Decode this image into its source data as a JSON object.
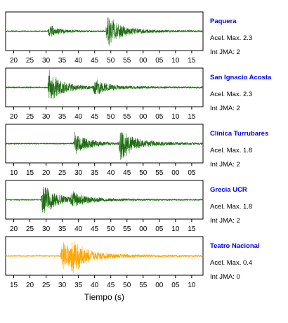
{
  "xlabel": "Tiempo (s)",
  "colors": {
    "trace_green": "#1f6e12",
    "trace_orange": "#ffa500",
    "station_name": "#0000ee",
    "axis": "#000000",
    "text": "#000000"
  },
  "chart_data": [
    {
      "type": "line",
      "station": "Paquera",
      "accel_label": "Acel. Max. 2.3",
      "jma_label": "Int JMA: 2",
      "peak_accel": 2.3,
      "jma_intensity": 2,
      "trace_color": "#1f6e12",
      "tick_labels": [
        "20",
        "25",
        "30",
        "35",
        "40",
        "45",
        "50",
        "55",
        "00",
        "05",
        "10",
        "15"
      ],
      "time_axis_s": {
        "start": 17.5,
        "end": 78.5,
        "first_tick": 20,
        "step": 5
      },
      "signal": {
        "p_arrival_s": 30.5,
        "s_arrival_s": 48.5,
        "noise": 0.03,
        "p_amp": 0.35,
        "s_amp": 1.0
      }
    },
    {
      "type": "line",
      "station": "San Ignacio Acosta",
      "accel_label": "Acel. Max. 2.3",
      "jma_label": "Int JMA: 2",
      "peak_accel": 2.3,
      "jma_intensity": 2,
      "trace_color": "#1f6e12",
      "tick_labels": [
        "20",
        "25",
        "30",
        "35",
        "40",
        "45",
        "50",
        "55",
        "00",
        "05",
        "10",
        "15"
      ],
      "time_axis_s": {
        "start": 17.5,
        "end": 78.5,
        "first_tick": 20,
        "step": 5
      },
      "signal": {
        "p_arrival_s": 30.5,
        "s_arrival_s": 44.5,
        "noise": 0.03,
        "p_amp": 1.0,
        "s_amp": 0.45
      }
    },
    {
      "type": "line",
      "station": "Clinica Turrubares",
      "accel_label": "Acel. Max. 1.8",
      "jma_label": "Int JMA: 2",
      "peak_accel": 1.8,
      "jma_intensity": 2,
      "trace_color": "#1f6e12",
      "tick_labels": [
        "10",
        "15",
        "20",
        "25",
        "30",
        "35",
        "40",
        "45",
        "50",
        "55",
        "00",
        "05"
      ],
      "time_axis_s": {
        "start": 7.5,
        "end": 68.5,
        "first_tick": 10,
        "step": 5
      },
      "signal": {
        "p_arrival_s": 28.5,
        "s_arrival_s": 42.5,
        "noise": 0.03,
        "p_amp": 0.75,
        "s_amp": 1.0
      }
    },
    {
      "type": "line",
      "station": "Grecia UCR",
      "accel_label": "Acel. Max. 1.8",
      "jma_label": "Int JMA: 2",
      "peak_accel": 1.8,
      "jma_intensity": 2,
      "trace_color": "#1f6e12",
      "tick_labels": [
        "20",
        "25",
        "30",
        "35",
        "40",
        "45",
        "50",
        "55",
        "00",
        "05",
        "10",
        "15"
      ],
      "time_axis_s": {
        "start": 17.5,
        "end": 78.5,
        "first_tick": 20,
        "step": 5
      },
      "signal": {
        "p_arrival_s": 28.5,
        "s_arrival_s": 37.5,
        "noise": 0.03,
        "p_amp": 1.0,
        "s_amp": 0.4
      }
    },
    {
      "type": "line",
      "station": "Teatro Nacional",
      "accel_label": "Acel. Max. 0.4",
      "jma_label": "Int JMA: 0",
      "peak_accel": 0.4,
      "jma_intensity": 0,
      "trace_color": "#ffa500",
      "tick_labels": [
        "15",
        "20",
        "25",
        "30",
        "35",
        "40",
        "45",
        "50",
        "55",
        "00",
        "05",
        "10"
      ],
      "time_axis_s": {
        "start": 12.5,
        "end": 73.5,
        "first_tick": 15,
        "step": 5
      },
      "signal": {
        "p_arrival_s": 29.5,
        "s_arrival_s": 32.5,
        "noise": 0.04,
        "p_amp": 0.95,
        "s_amp": 0.7
      }
    }
  ]
}
